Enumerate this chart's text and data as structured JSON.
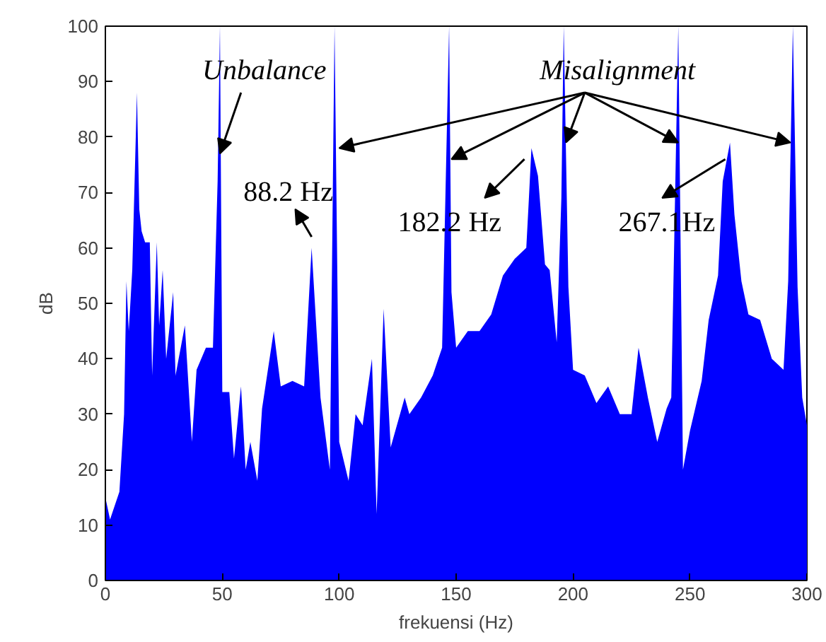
{
  "chart_data": {
    "type": "area",
    "xlabel": "frekuensi (Hz)",
    "ylabel": "dB",
    "x": [
      0,
      2,
      6,
      8,
      9,
      10,
      11.5,
      13.5,
      14.5,
      15.5,
      17,
      19,
      20,
      22,
      23,
      24.5,
      26,
      29,
      30,
      34,
      37,
      39,
      43,
      46,
      48,
      49,
      50,
      53,
      55,
      58,
      60,
      62,
      65,
      67,
      72,
      75,
      80,
      85,
      88.2,
      92,
      96,
      98,
      100,
      104,
      107,
      110,
      114,
      116,
      119,
      122,
      128,
      130,
      135,
      140,
      144,
      147,
      148,
      150,
      155,
      160,
      165,
      170,
      175,
      180,
      181,
      182.2,
      185,
      188,
      190,
      193,
      195,
      196,
      198,
      200,
      205,
      210,
      215,
      220,
      225,
      228,
      232,
      236,
      240,
      242,
      245,
      247,
      250,
      255,
      258,
      262,
      264,
      267.1,
      269,
      272,
      275,
      280,
      285,
      290,
      292,
      294,
      296,
      298,
      300
    ],
    "series": [
      {
        "color": "#0000ff",
        "values": [
          15,
          11,
          16,
          30,
          54,
          45,
          56,
          88,
          67,
          63,
          61,
          61,
          37,
          61,
          46,
          56,
          40,
          52,
          37,
          46,
          25,
          38,
          42,
          42,
          72,
          100,
          34,
          34,
          22,
          35,
          20,
          25,
          18,
          31,
          45,
          35,
          36,
          35,
          60,
          33,
          20,
          100,
          25,
          18,
          30,
          28,
          40,
          12,
          49,
          24,
          33,
          30,
          33,
          37,
          42,
          100,
          52,
          42,
          45,
          45,
          48,
          55,
          58,
          60,
          68,
          78,
          73,
          57,
          56,
          43,
          69,
          100,
          53,
          38,
          37,
          32,
          35,
          30,
          30,
          42,
          33,
          25,
          31,
          33,
          100,
          20,
          27,
          36,
          47,
          55,
          72,
          79,
          66,
          54,
          48,
          47,
          40,
          38,
          54,
          100,
          53,
          33,
          28
        ]
      }
    ],
    "xlim": [
      0,
      300
    ],
    "ylim": [
      0,
      100
    ],
    "xticks": [
      0,
      50,
      100,
      150,
      200,
      250,
      300
    ],
    "yticks": [
      0,
      10,
      20,
      30,
      40,
      50,
      60,
      70,
      80,
      90,
      100
    ],
    "grid": false,
    "annotations": [
      {
        "text": "Unbalance",
        "x": 49,
        "y": 77
      },
      {
        "text": "Misalignment",
        "x": 196,
        "y": 79
      },
      {
        "text": "88.2 Hz",
        "x": 88.2,
        "y": 60
      },
      {
        "text": "182.2 Hz",
        "x": 182.2,
        "y": 78
      },
      {
        "text": "267.1Hz",
        "x": 267.1,
        "y": 79
      }
    ]
  }
}
